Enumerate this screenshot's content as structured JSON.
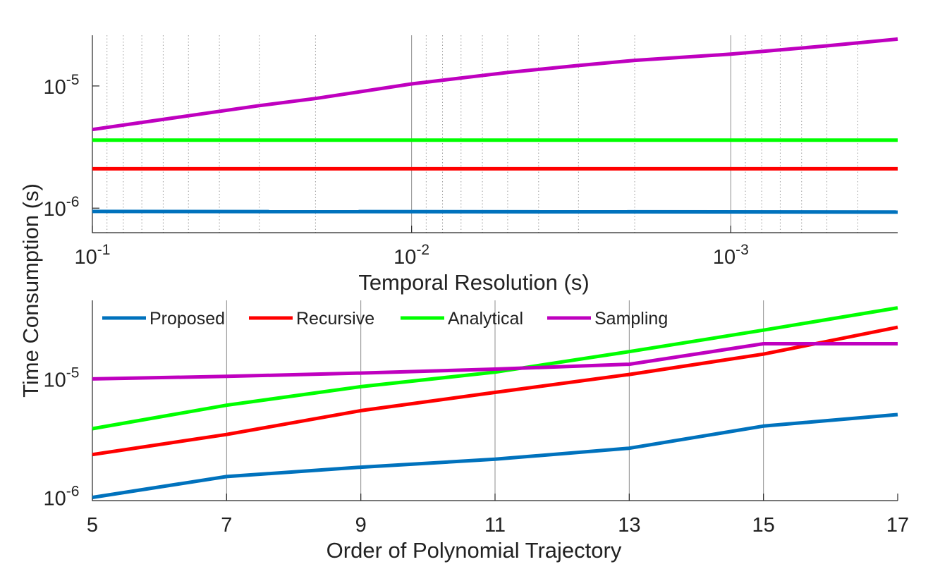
{
  "chart_data": [
    {
      "id": "top",
      "type": "line",
      "title": "",
      "xlabel": "Temporal Resolution (s)",
      "ylabel": "Time Consumption (s)",
      "xscale": "log",
      "yscale": "log",
      "x_reversed": true,
      "xlim": [
        0.1,
        0.0003
      ],
      "ylim": [
        6.3e-07,
        2.6e-05
      ],
      "grid": "vertical",
      "x_ticks": [
        {
          "value": 0.1,
          "base": "10",
          "exp": "-1"
        },
        {
          "value": 0.01,
          "base": "10",
          "exp": "-2"
        },
        {
          "value": 0.001,
          "base": "10",
          "exp": "-3"
        }
      ],
      "y_ticks": [
        {
          "value": 1e-05,
          "base": "10",
          "exp": "-5"
        },
        {
          "value": 1e-06,
          "base": "10",
          "exp": "-6"
        }
      ],
      "series": [
        {
          "name": "Proposed",
          "color": "#0072BD",
          "x": [
            0.1,
            0.0003
          ],
          "values": [
            9.4e-07,
            9.3e-07
          ]
        },
        {
          "name": "Recursive",
          "color": "#FF0000",
          "x": [
            0.1,
            0.0003
          ],
          "values": [
            2.1e-06,
            2.1e-06
          ]
        },
        {
          "name": "Analytical",
          "color": "#00FF00",
          "x": [
            0.1,
            0.0003
          ],
          "values": [
            3.6e-06,
            3.6e-06
          ]
        },
        {
          "name": "Sampling",
          "color": "#BF00BF",
          "x": [
            0.1,
            0.05,
            0.03,
            0.02,
            0.01,
            0.005,
            0.003,
            0.002,
            0.001,
            0.0005,
            0.0003
          ],
          "values": [
            4.4e-06,
            5.7e-06,
            6.9e-06,
            7.9e-06,
            1.04e-05,
            1.29e-05,
            1.47e-05,
            1.62e-05,
            1.82e-05,
            2.13e-05,
            2.42e-05
          ]
        }
      ]
    },
    {
      "id": "bottom",
      "type": "line",
      "title": "",
      "xlabel": "Order of Polynomial Trajectory",
      "ylabel": "Time Consumption (s)",
      "xscale": "linear",
      "yscale": "log",
      "xlim": [
        5,
        17
      ],
      "ylim": [
        9.4e-07,
        4.6e-05
      ],
      "grid": "vertical",
      "x_ticks": [
        {
          "value": 5,
          "label": "5"
        },
        {
          "value": 7,
          "label": "7"
        },
        {
          "value": 9,
          "label": "9"
        },
        {
          "value": 11,
          "label": "11"
        },
        {
          "value": 13,
          "label": "13"
        },
        {
          "value": 15,
          "label": "15"
        },
        {
          "value": 17,
          "label": "17"
        }
      ],
      "y_ticks": [
        {
          "value": 1e-05,
          "base": "10",
          "exp": "-5"
        },
        {
          "value": 1e-06,
          "base": "10",
          "exp": "-6"
        }
      ],
      "legend": {
        "position": "top",
        "orientation": "horizontal"
      },
      "categories": [
        5,
        7,
        9,
        11,
        13,
        15,
        17
      ],
      "series": [
        {
          "name": "Proposed",
          "color": "#0072BD",
          "values": [
            1e-06,
            1.5e-06,
            1.8e-06,
            2.1e-06,
            2.6e-06,
            4e-06,
            5e-06
          ]
        },
        {
          "name": "Recursive",
          "color": "#FF0000",
          "values": [
            2.3e-06,
            3.4e-06,
            5.4e-06,
            7.7e-06,
            1.09e-05,
            1.62e-05,
            2.73e-05
          ]
        },
        {
          "name": "Analytical",
          "color": "#00FF00",
          "values": [
            3.8e-06,
            6e-06,
            8.6e-06,
            1.14e-05,
            1.7e-05,
            2.58e-05,
            3.98e-05
          ]
        },
        {
          "name": "Sampling",
          "color": "#BF00BF",
          "values": [
            1e-05,
            1.05e-05,
            1.12e-05,
            1.21e-05,
            1.33e-05,
            1.98e-05,
            1.98e-05
          ]
        }
      ]
    }
  ]
}
